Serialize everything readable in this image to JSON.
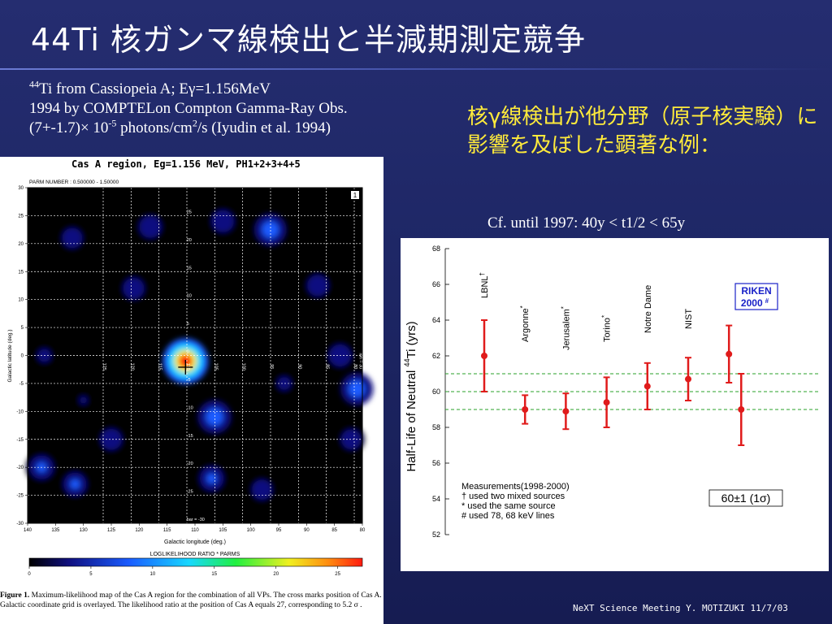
{
  "slide": {
    "title": "44Ti 核ガンマ線検出と半減期測定競争",
    "note": {
      "line1_sup": "44",
      "line1_a": "Ti from Cassiopeia A; E",
      "line1_gamma": "γ",
      "line1_b": "=1.156MeV",
      "line2": "1994 by COMPTELon Compton Gamma-Ray Obs.",
      "line3_a": "(7+-1.7)× 10",
      "line3_sup1": "-5",
      "line3_b": " photons/cm",
      "line3_sup2": "2",
      "line3_c": "/s (Iyudin et al. 1994)"
    },
    "jp_note": "核γ線検出が他分野（原子核実験）に影響を及ぼした顕著な例：",
    "cf_note": "Cf. until 1997: 40y < t1/2 < 65y",
    "footer": "NeXT Science Meeting Y. MOTIZUKI  11/7/03",
    "figure_caption": {
      "label": "Figure 1.",
      "text": "Maximum-likelihood map of the Cas A region for the combination of all VPs.  The cross marks position of Cas A. Galactic coordinate grid is overlayed.  The likelihood ratio at the position of Cas A equals 27, corresponding to 5.2 σ ."
    }
  },
  "chart_data": [
    {
      "type": "heatmap",
      "title": "Cas A region, Eg=1.156 MeV, PH1+2+3+4+5",
      "param_label": "PARM NUMBER :  0.500000 -   1.50000",
      "panel_number": "1",
      "xlabel": "Galactic longitude (deg.)",
      "ylabel": "Galactic latitude (deg.)",
      "xlim": [
        140,
        80
      ],
      "ylim": [
        -30,
        30
      ],
      "x_ticks": [
        140,
        135,
        130,
        125,
        120,
        115,
        110,
        105,
        100,
        95,
        90,
        85,
        80
      ],
      "y_ticks": [
        30,
        25,
        20,
        15,
        10,
        5,
        0,
        -5,
        -10,
        -15,
        -20,
        -25,
        -30
      ],
      "grid_v_labels": [
        "125",
        "120",
        "115",
        "110",
        "105",
        "100",
        "95",
        "90",
        "85",
        "80"
      ],
      "grid_h_labels": [
        "25",
        "20",
        "15",
        "10",
        "5",
        "0",
        "-5",
        "-10",
        "-15",
        "-20",
        "-25",
        "bar = -30"
      ],
      "right_label": "lon = 30",
      "source_marker": {
        "name": "Cas A",
        "l": 111.7,
        "b": -2.1
      },
      "colorbar": {
        "label": "LOGLIKELIHOOD RATIO * PARMS",
        "ticks": [
          "0",
          "5",
          "10",
          "15",
          "20",
          "25"
        ],
        "range": [
          0,
          27
        ]
      },
      "blobs": [
        {
          "l": 111.7,
          "b": -1.0,
          "value": 27
        },
        {
          "l": 106.5,
          "b": -11.0,
          "value": 12
        },
        {
          "l": 107.0,
          "b": -22.0,
          "value": 10
        },
        {
          "l": 118.0,
          "b": 23.0,
          "value": 8
        },
        {
          "l": 105.0,
          "b": 24.0,
          "value": 8
        },
        {
          "l": 96.5,
          "b": 22.5,
          "value": 11
        },
        {
          "l": 84.0,
          "b": 0.0,
          "value": 8
        },
        {
          "l": 81.0,
          "b": -6.0,
          "value": 11
        },
        {
          "l": 137.5,
          "b": -20.0,
          "value": 10
        },
        {
          "l": 131.5,
          "b": -23.0,
          "value": 9
        },
        {
          "l": 125.0,
          "b": -15.0,
          "value": 7
        },
        {
          "l": 121.0,
          "b": 12.0,
          "value": 7
        },
        {
          "l": 132.0,
          "b": 21.0,
          "value": 6
        },
        {
          "l": 88.0,
          "b": 12.5,
          "value": 7
        },
        {
          "l": 82.0,
          "b": -15.0,
          "value": 6
        },
        {
          "l": 94.0,
          "b": -5.0,
          "value": 5
        },
        {
          "l": 137.0,
          "b": 0.0,
          "value": 5
        },
        {
          "l": 98.0,
          "b": -24.0,
          "value": 6
        },
        {
          "l": 130.0,
          "b": -8.0,
          "value": 4
        }
      ]
    },
    {
      "type": "scatter",
      "ylabel": "Half-Life of Neutral 44Ti (yrs)",
      "ylabel_sup": "44",
      "ylabel_pre": "Half-Life of Neutral ",
      "ylabel_post": "Ti  (yrs)",
      "ylim": [
        52,
        68
      ],
      "y_ticks": [
        52,
        54,
        56,
        58,
        60,
        62,
        64,
        66,
        68
      ],
      "reference_lines": [
        59,
        60,
        61
      ],
      "points": [
        {
          "label": "LBNL",
          "mark": "†",
          "x": 1,
          "y": 62.0,
          "lo": 60.0,
          "hi": 64.0
        },
        {
          "label": "Argonne",
          "mark": "*",
          "x": 2,
          "y": 59.0,
          "lo": 58.2,
          "hi": 59.8
        },
        {
          "label": "Jerusalem",
          "mark": "*",
          "x": 3,
          "y": 58.9,
          "lo": 57.9,
          "hi": 59.9
        },
        {
          "label": "Torino",
          "mark": "*",
          "x": 4,
          "y": 59.4,
          "lo": 58.0,
          "hi": 60.8
        },
        {
          "label": "Notre Dame",
          "mark": "",
          "x": 5,
          "y": 60.3,
          "lo": 59.0,
          "hi": 61.6
        },
        {
          "label": "NIST",
          "mark": "",
          "x": 6,
          "y": 60.7,
          "lo": 59.5,
          "hi": 61.9
        },
        {
          "label": "",
          "mark": "",
          "x": 7,
          "y": 62.1,
          "lo": 60.5,
          "hi": 63.7
        },
        {
          "label": "",
          "mark": "",
          "x": 7.3,
          "y": 59.0,
          "lo": 57.0,
          "hi": 61.0
        }
      ],
      "riken_label_1": "RIKEN",
      "riken_label_2": "2000",
      "riken_mark": "#",
      "legend_title": "Measurements(1998-2000)",
      "legend_lines": [
        "† used two mixed sources",
        "* used the same source",
        "# used 78, 68 keV lines"
      ],
      "average_label": "60±1 (1σ)",
      "colors": {
        "points": "#e01b1b",
        "reflines": "#2aa02a",
        "riken": "#1a22c8"
      }
    }
  ]
}
